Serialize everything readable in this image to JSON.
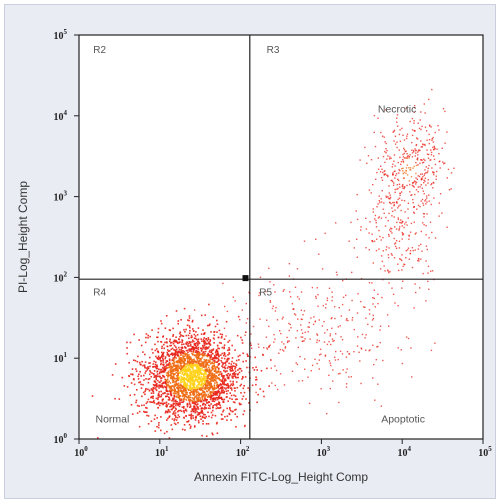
{
  "chart_data": {
    "type": "scatter",
    "xlabel": "Annexin FITC-Log_Height Comp",
    "ylabel": "PI-Log_Height Comp",
    "xscale": "log",
    "yscale": "log",
    "xlim": [
      1,
      100000
    ],
    "ylim": [
      1,
      100000
    ],
    "x_ticks": [
      {
        "value": 1,
        "base": "10",
        "exp": "0"
      },
      {
        "value": 10,
        "base": "10",
        "exp": "1"
      },
      {
        "value": 100,
        "base": "10",
        "exp": "2"
      },
      {
        "value": 1000,
        "base": "10",
        "exp": "3"
      },
      {
        "value": 10000,
        "base": "10",
        "exp": "4"
      },
      {
        "value": 100000,
        "base": "10",
        "exp": "5"
      }
    ],
    "y_ticks": [
      {
        "value": 1,
        "base": "10",
        "exp": "0"
      },
      {
        "value": 10,
        "base": "10",
        "exp": "1"
      },
      {
        "value": 100,
        "base": "10",
        "exp": "2"
      },
      {
        "value": 1000,
        "base": "10",
        "exp": "3"
      },
      {
        "value": 10000,
        "base": "10",
        "exp": "4"
      },
      {
        "value": 100000,
        "base": "10",
        "exp": "5"
      }
    ],
    "gates": {
      "x_divider": 130,
      "y_divider": 95
    },
    "gate_marker": {
      "x": 115,
      "y": 98
    },
    "quadrant_labels": [
      {
        "text": "R2",
        "x": 1.5,
        "y": 60000
      },
      {
        "text": "R3",
        "x": 210,
        "y": 60000
      },
      {
        "text": "R4",
        "x": 1.5,
        "y": 60
      },
      {
        "text": "R5",
        "x": 170,
        "y": 60
      }
    ],
    "population_labels": [
      {
        "text": "Necrotic",
        "x": 5000,
        "y": 11000
      },
      {
        "text": "Normal",
        "x": 1.6,
        "y": 1.6
      },
      {
        "text": "Apoptotic",
        "x": 5500,
        "y": 1.6
      }
    ],
    "populations": [
      {
        "name": "normal",
        "center": [
          25,
          6
        ],
        "spread": [
          0.3,
          0.27
        ],
        "count": 2600,
        "intensity": "dense"
      },
      {
        "name": "apoptotic",
        "center": [
          900,
          25
        ],
        "spread": [
          0.55,
          0.42
        ],
        "count": 320,
        "intensity": "sparse"
      },
      {
        "name": "necrotic",
        "center": [
          12000,
          2200
        ],
        "spread": [
          0.22,
          0.33
        ],
        "count": 420,
        "intensity": "medium"
      },
      {
        "name": "late-apoptotic-band",
        "center": [
          9000,
          300
        ],
        "spread": [
          0.28,
          0.25
        ],
        "count": 160,
        "intensity": "sparse"
      }
    ],
    "point_colors": {
      "low": "#e8231a",
      "mid": "#f06a12",
      "high": "#ffd21a"
    }
  }
}
